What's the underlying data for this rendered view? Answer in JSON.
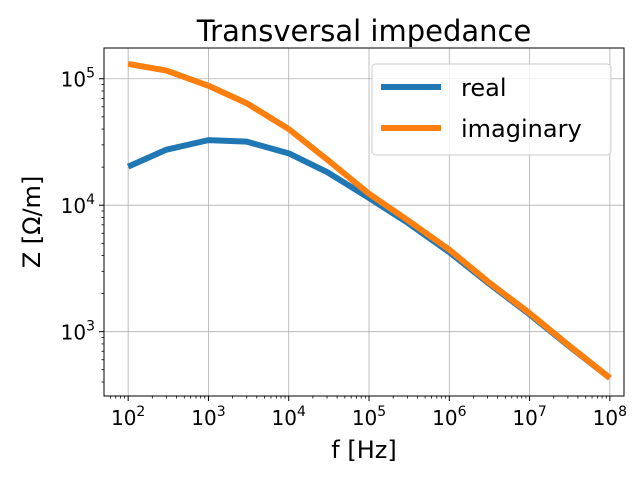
{
  "chart_data": {
    "type": "line",
    "title": "Transversal impedance",
    "xlabel": "f [Hz]",
    "ylabel": "Z [Ω/m]",
    "xscale": "log",
    "yscale": "log",
    "xlim": [
      50,
      150000000
    ],
    "ylim": [
      310,
      175000
    ],
    "x_ticks": [
      {
        "base": "10",
        "exp": "2",
        "value": 100
      },
      {
        "base": "10",
        "exp": "3",
        "value": 1000
      },
      {
        "base": "10",
        "exp": "4",
        "value": 10000
      },
      {
        "base": "10",
        "exp": "5",
        "value": 100000
      },
      {
        "base": "10",
        "exp": "6",
        "value": 1000000
      },
      {
        "base": "10",
        "exp": "7",
        "value": 10000000
      },
      {
        "base": "10",
        "exp": "8",
        "value": 100000000
      }
    ],
    "y_ticks": [
      {
        "base": "10",
        "exp": "3",
        "value": 1000
      },
      {
        "base": "10",
        "exp": "4",
        "value": 10000
      },
      {
        "base": "10",
        "exp": "5",
        "value": 100000
      }
    ],
    "grid": true,
    "legend_position": "top-right",
    "x": [
      100,
      300,
      1000,
      3000,
      10000,
      30000,
      100000,
      300000,
      1000000,
      3000000,
      10000000,
      30000000,
      100000000
    ],
    "series": [
      {
        "name": "real",
        "color": "#1f77b4",
        "values": [
          20200,
          27500,
          32700,
          31800,
          25700,
          18300,
          11400,
          7300,
          4250,
          2450,
          1370,
          780,
          430
        ]
      },
      {
        "name": "imaginary",
        "color": "#ff7f0e",
        "values": [
          131000,
          116000,
          88000,
          64000,
          40000,
          23000,
          12300,
          7650,
          4450,
          2500,
          1400,
          790,
          430
        ]
      }
    ]
  }
}
